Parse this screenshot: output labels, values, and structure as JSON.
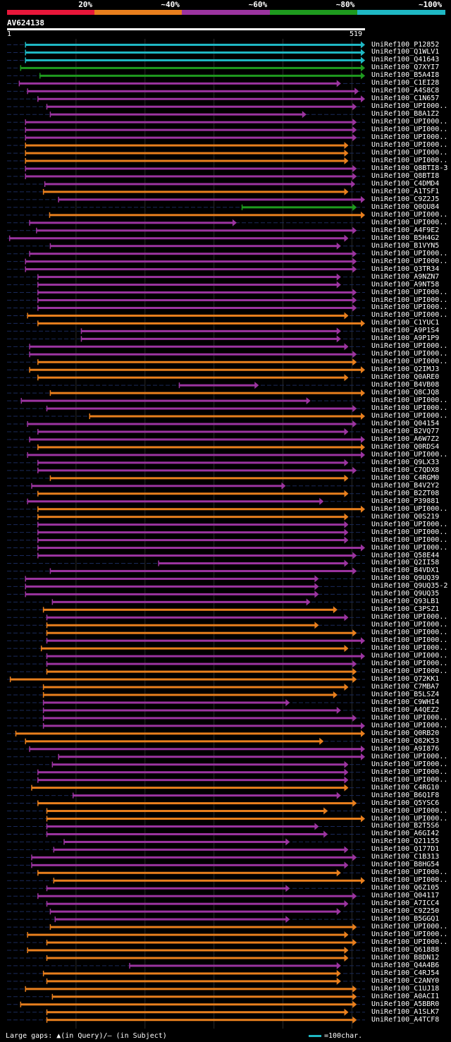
{
  "colors": {
    "red": "#e8173a",
    "orange": "#e87f1d",
    "purple": "#9b34a0",
    "green": "#1e9a1e",
    "cyan": "#1fb8c4",
    "grid": "#2a2a2a",
    "dash": "#1a2a5a"
  },
  "legend": {
    "segments": [
      {
        "color": "#e8173a",
        "label": "20%"
      },
      {
        "color": "#e87f1d",
        "label": "~40%"
      },
      {
        "color": "#9b34a0",
        "label": "~60%"
      },
      {
        "color": "#1e9a1e",
        "label": "~80%"
      },
      {
        "color": "#1fb8c4",
        "label": "~100%"
      }
    ]
  },
  "query": {
    "id": "AV624138",
    "start_label": "1",
    "end_label": "519"
  },
  "footer": {
    "left": "Large gaps: ▲(in Query)/— (in Subject)",
    "right": "=100char."
  },
  "chart_data": {
    "type": "alignment",
    "query_length": 519,
    "hits": [
      {
        "name": "UniRef100_P12852",
        "color": "cyan",
        "start": 27,
        "end": 519
      },
      {
        "name": "UniRef100_Q1WLV1",
        "color": "cyan",
        "start": 27,
        "end": 519
      },
      {
        "name": "UniRef100_Q41643",
        "color": "cyan",
        "start": 27,
        "end": 519
      },
      {
        "name": "UniRef100_Q7XYI7",
        "color": "green",
        "start": 20,
        "end": 519
      },
      {
        "name": "UniRef100_B5A4I8",
        "color": "green",
        "start": 48,
        "end": 519
      },
      {
        "name": "UniRef100_C1EI28",
        "color": "purple",
        "start": 18,
        "end": 484
      },
      {
        "name": "UniRef100_A4S8C8",
        "color": "purple",
        "start": 30,
        "end": 510
      },
      {
        "name": "UniRef100_C1N657",
        "color": "purple",
        "start": 45,
        "end": 519
      },
      {
        "name": "UniRef100_UPI000..",
        "color": "purple",
        "start": 58,
        "end": 507
      },
      {
        "name": "UniRef100_B8A1Z2",
        "color": "purple",
        "start": 63,
        "end": 434
      },
      {
        "name": "UniRef100_UPI000..",
        "color": "purple",
        "start": 27,
        "end": 507
      },
      {
        "name": "UniRef100_UPI000..",
        "color": "purple",
        "start": 27,
        "end": 507
      },
      {
        "name": "UniRef100_UPI000..",
        "color": "purple",
        "start": 27,
        "end": 507
      },
      {
        "name": "UniRef100_UPI000..",
        "color": "orange",
        "start": 27,
        "end": 495
      },
      {
        "name": "UniRef100_UPI000..",
        "color": "orange",
        "start": 27,
        "end": 495
      },
      {
        "name": "UniRef100_UPI000..",
        "color": "orange",
        "start": 27,
        "end": 495
      },
      {
        "name": "UniRef100_Q8BTI8-3",
        "color": "purple",
        "start": 27,
        "end": 507
      },
      {
        "name": "UniRef100_Q8BTI8",
        "color": "purple",
        "start": 27,
        "end": 507
      },
      {
        "name": "UniRef100_C4DMD4",
        "color": "purple",
        "start": 55,
        "end": 505
      },
      {
        "name": "UniRef100_A1TSF1",
        "color": "orange",
        "start": 53,
        "end": 495
      },
      {
        "name": "UniRef100_C9Z2J5",
        "color": "purple",
        "start": 75,
        "end": 519
      },
      {
        "name": "UniRef100_Q0QU84",
        "color": "green",
        "start": 341,
        "end": 507
      },
      {
        "name": "UniRef100_UPI000..",
        "color": "orange",
        "start": 62,
        "end": 519
      },
      {
        "name": "UniRef100_UPI000..",
        "color": "purple",
        "start": 33,
        "end": 333
      },
      {
        "name": "UniRef100_A4F9E2",
        "color": "purple",
        "start": 43,
        "end": 507
      },
      {
        "name": "UniRef100_B5H4G2",
        "color": "purple",
        "start": 4,
        "end": 495
      },
      {
        "name": "UniRef100_B1VYN5",
        "color": "purple",
        "start": 63,
        "end": 484
      },
      {
        "name": "UniRef100_UPI000..",
        "color": "purple",
        "start": 33,
        "end": 507
      },
      {
        "name": "UniRef100_UPI000..",
        "color": "purple",
        "start": 27,
        "end": 507
      },
      {
        "name": "UniRef100_Q3TR34",
        "color": "purple",
        "start": 27,
        "end": 507
      },
      {
        "name": "UniRef100_A9NZN7",
        "color": "purple",
        "start": 45,
        "end": 484
      },
      {
        "name": "UniRef100_A9NT58",
        "color": "purple",
        "start": 45,
        "end": 484
      },
      {
        "name": "UniRef100_UPI000..",
        "color": "purple",
        "start": 45,
        "end": 507
      },
      {
        "name": "UniRef100_UPI000..",
        "color": "purple",
        "start": 45,
        "end": 507
      },
      {
        "name": "UniRef100_UPI000..",
        "color": "purple",
        "start": 45,
        "end": 507
      },
      {
        "name": "UniRef100_UPI000..",
        "color": "orange",
        "start": 30,
        "end": 495
      },
      {
        "name": "UniRef100_C1YUC1",
        "color": "orange",
        "start": 45,
        "end": 519
      },
      {
        "name": "UniRef100_A9P1S4",
        "color": "purple",
        "start": 108,
        "end": 484
      },
      {
        "name": "UniRef100_A9P1P9",
        "color": "purple",
        "start": 108,
        "end": 484
      },
      {
        "name": "UniRef100_UPI000..",
        "color": "purple",
        "start": 33,
        "end": 495
      },
      {
        "name": "UniRef100_UPI000..",
        "color": "purple",
        "start": 33,
        "end": 507
      },
      {
        "name": "UniRef100_UPI000..",
        "color": "orange",
        "start": 45,
        "end": 507
      },
      {
        "name": "UniRef100_Q2IMJ3",
        "color": "orange",
        "start": 33,
        "end": 519
      },
      {
        "name": "UniRef100_Q0ARE0",
        "color": "orange",
        "start": 45,
        "end": 495
      },
      {
        "name": "UniRef100_B4VB08",
        "color": "purple",
        "start": 250,
        "end": 365
      },
      {
        "name": "UniRef100_Q8CJQ8",
        "color": "orange",
        "start": 63,
        "end": 519
      },
      {
        "name": "UniRef100_UPI000..",
        "color": "purple",
        "start": 21,
        "end": 440
      },
      {
        "name": "UniRef100_UPI000..",
        "color": "purple",
        "start": 58,
        "end": 507
      },
      {
        "name": "UniRef100_UPI000..",
        "color": "orange",
        "start": 120,
        "end": 519
      },
      {
        "name": "UniRef100_Q04154",
        "color": "purple",
        "start": 30,
        "end": 507
      },
      {
        "name": "UniRef100_B2VQ77",
        "color": "purple",
        "start": 45,
        "end": 495
      },
      {
        "name": "UniRef100_A6W7Z2",
        "color": "purple",
        "start": 33,
        "end": 519
      },
      {
        "name": "UniRef100_Q0RDS4",
        "color": "orange",
        "start": 45,
        "end": 519
      },
      {
        "name": "UniRef100_UPI000..",
        "color": "purple",
        "start": 30,
        "end": 519
      },
      {
        "name": "UniRef100_Q9LX33",
        "color": "purple",
        "start": 45,
        "end": 495
      },
      {
        "name": "UniRef100_C7QDX8",
        "color": "purple",
        "start": 45,
        "end": 507
      },
      {
        "name": "UniRef100_C4RGM0",
        "color": "orange",
        "start": 63,
        "end": 495
      },
      {
        "name": "UniRef100_B4V2Y2",
        "color": "purple",
        "start": 36,
        "end": 404
      },
      {
        "name": "UniRef100_B2ZT08",
        "color": "orange",
        "start": 45,
        "end": 495
      },
      {
        "name": "UniRef100_P39881",
        "color": "purple",
        "start": 30,
        "end": 459
      },
      {
        "name": "UniRef100_UPI000..",
        "color": "orange",
        "start": 45,
        "end": 519
      },
      {
        "name": "UniRef100_Q0S219",
        "color": "orange",
        "start": 45,
        "end": 495
      },
      {
        "name": "UniRef100_UPI000..",
        "color": "purple",
        "start": 45,
        "end": 495
      },
      {
        "name": "UniRef100_UPI000..",
        "color": "purple",
        "start": 45,
        "end": 495
      },
      {
        "name": "UniRef100_UPI000..",
        "color": "purple",
        "start": 45,
        "end": 495
      },
      {
        "name": "UniRef100_UPI000..",
        "color": "purple",
        "start": 45,
        "end": 519
      },
      {
        "name": "UniRef100_Q58E44",
        "color": "purple",
        "start": 45,
        "end": 507
      },
      {
        "name": "UniRef100_Q2II58",
        "color": "purple",
        "start": 220,
        "end": 495
      },
      {
        "name": "UniRef100_B4VDX1",
        "color": "purple",
        "start": 63,
        "end": 507
      },
      {
        "name": "UniRef100_Q9UQ39",
        "color": "purple",
        "start": 27,
        "end": 452
      },
      {
        "name": "UniRef100_Q9UQ35-2",
        "color": "purple",
        "start": 27,
        "end": 452
      },
      {
        "name": "UniRef100_Q9UQ35",
        "color": "purple",
        "start": 27,
        "end": 452
      },
      {
        "name": "UniRef100_Q93LB1",
        "color": "purple",
        "start": 66,
        "end": 440
      },
      {
        "name": "UniRef100_C3PSZ1",
        "color": "orange",
        "start": 53,
        "end": 479
      },
      {
        "name": "UniRef100_UPI000..",
        "color": "purple",
        "start": 58,
        "end": 495
      },
      {
        "name": "UniRef100_UPI000..",
        "color": "orange",
        "start": 58,
        "end": 452
      },
      {
        "name": "UniRef100_UPI000..",
        "color": "orange",
        "start": 58,
        "end": 507
      },
      {
        "name": "UniRef100_UPI000..",
        "color": "purple",
        "start": 58,
        "end": 519
      },
      {
        "name": "UniRef100_UPI000..",
        "color": "orange",
        "start": 50,
        "end": 495
      },
      {
        "name": "UniRef100_UPI000..",
        "color": "purple",
        "start": 58,
        "end": 519
      },
      {
        "name": "UniRef100_UPI000..",
        "color": "purple",
        "start": 58,
        "end": 507
      },
      {
        "name": "UniRef100_UPI000..",
        "color": "orange",
        "start": 58,
        "end": 507
      },
      {
        "name": "UniRef100_Q72KK1",
        "color": "orange",
        "start": 5,
        "end": 507
      },
      {
        "name": "UniRef100_C7MBA7",
        "color": "orange",
        "start": 53,
        "end": 495
      },
      {
        "name": "UniRef100_B5LSZ4",
        "color": "orange",
        "start": 53,
        "end": 479
      },
      {
        "name": "UniRef100_C9WHI4",
        "color": "purple",
        "start": 53,
        "end": 410
      },
      {
        "name": "UniRef100_A4QEZ2",
        "color": "purple",
        "start": 53,
        "end": 484
      },
      {
        "name": "UniRef100_UPI000..",
        "color": "purple",
        "start": 53,
        "end": 507
      },
      {
        "name": "UniRef100_UPI000..",
        "color": "purple",
        "start": 53,
        "end": 519
      },
      {
        "name": "UniRef100_Q0RB20",
        "color": "orange",
        "start": 13,
        "end": 519
      },
      {
        "name": "UniRef100_Q82K53",
        "color": "orange",
        "start": 27,
        "end": 459
      },
      {
        "name": "UniRef100_A9I876",
        "color": "purple",
        "start": 33,
        "end": 519
      },
      {
        "name": "UniRef100_UPI000..",
        "color": "purple",
        "start": 75,
        "end": 519
      },
      {
        "name": "UniRef100_UPI000..",
        "color": "purple",
        "start": 66,
        "end": 495
      },
      {
        "name": "UniRef100_UPI000..",
        "color": "purple",
        "start": 45,
        "end": 495
      },
      {
        "name": "UniRef100_UPI000..",
        "color": "purple",
        "start": 45,
        "end": 495
      },
      {
        "name": "UniRef100_C4RG10",
        "color": "orange",
        "start": 36,
        "end": 495
      },
      {
        "name": "UniRef100_B6Q1F8",
        "color": "purple",
        "start": 96,
        "end": 484
      },
      {
        "name": "UniRef100_Q5YSC6",
        "color": "orange",
        "start": 45,
        "end": 507
      },
      {
        "name": "UniRef100_UPI000..",
        "color": "orange",
        "start": 58,
        "end": 465
      },
      {
        "name": "UniRef100_UPI000..",
        "color": "orange",
        "start": 58,
        "end": 519
      },
      {
        "name": "UniRef100_B2T5S6",
        "color": "purple",
        "start": 58,
        "end": 452
      },
      {
        "name": "UniRef100_A6GI42",
        "color": "purple",
        "start": 58,
        "end": 465
      },
      {
        "name": "UniRef100_Q21155",
        "color": "purple",
        "start": 83,
        "end": 410
      },
      {
        "name": "UniRef100_Q177D1",
        "color": "purple",
        "start": 68,
        "end": 495
      },
      {
        "name": "UniRef100_C1B313",
        "color": "purple",
        "start": 36,
        "end": 507
      },
      {
        "name": "UniRef100_B8HG54",
        "color": "purple",
        "start": 36,
        "end": 495
      },
      {
        "name": "UniRef100_UPI000..",
        "color": "orange",
        "start": 45,
        "end": 484
      },
      {
        "name": "UniRef100_UPI000..",
        "color": "orange",
        "start": 68,
        "end": 519
      },
      {
        "name": "UniRef100_Q6Z105",
        "color": "purple",
        "start": 58,
        "end": 410
      },
      {
        "name": "UniRef100_Q04117",
        "color": "purple",
        "start": 45,
        "end": 507
      },
      {
        "name": "UniRef100_A7ICC4",
        "color": "purple",
        "start": 58,
        "end": 495
      },
      {
        "name": "UniRef100_C9Z250",
        "color": "purple",
        "start": 63,
        "end": 484
      },
      {
        "name": "UniRef100_B5GGQ1",
        "color": "purple",
        "start": 70,
        "end": 410
      },
      {
        "name": "UniRef100_UPI000..",
        "color": "orange",
        "start": 63,
        "end": 507
      },
      {
        "name": "UniRef100_UPI000..",
        "color": "orange",
        "start": 30,
        "end": 495
      },
      {
        "name": "UniRef100_UPI000..",
        "color": "orange",
        "start": 58,
        "end": 507
      },
      {
        "name": "UniRef100_Q61888",
        "color": "orange",
        "start": 30,
        "end": 495
      },
      {
        "name": "UniRef100_B8DN12",
        "color": "orange",
        "start": 58,
        "end": 495
      },
      {
        "name": "UniRef100_Q4A4B6",
        "color": "purple",
        "start": 178,
        "end": 484
      },
      {
        "name": "UniRef100_C4RJ54",
        "color": "orange",
        "start": 53,
        "end": 484
      },
      {
        "name": "UniRef100_C2ANY0",
        "color": "orange",
        "start": 58,
        "end": 484
      },
      {
        "name": "UniRef100_C1UJ18",
        "color": "orange",
        "start": 27,
        "end": 507
      },
      {
        "name": "UniRef100_A0ACI1",
        "color": "orange",
        "start": 66,
        "end": 507
      },
      {
        "name": "UniRef100_A5BBR0",
        "color": "orange",
        "start": 20,
        "end": 507
      },
      {
        "name": "UniRef100_A1SLK7",
        "color": "orange",
        "start": 58,
        "end": 495
      },
      {
        "name": "UniRef100_A4TCF8",
        "color": "orange",
        "start": 58,
        "end": 507
      }
    ]
  }
}
